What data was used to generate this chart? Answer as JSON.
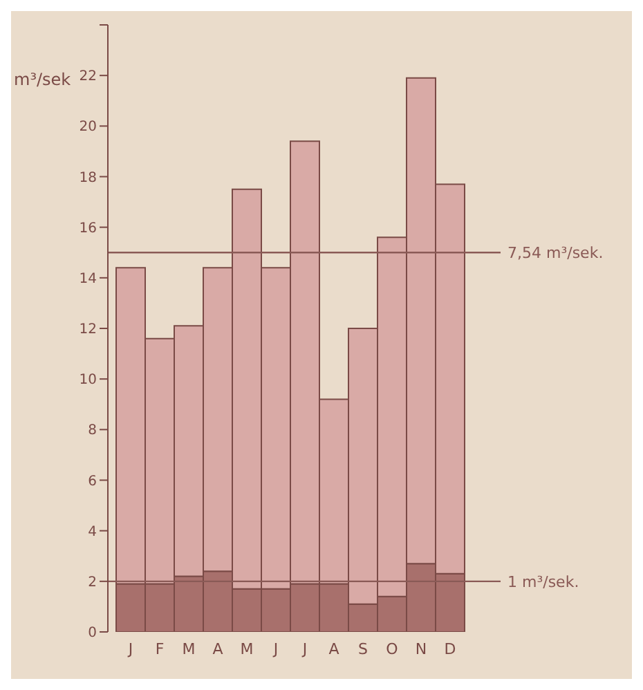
{
  "chart_data": {
    "type": "bar",
    "ylabel": "m³/sek",
    "categories": [
      "J",
      "F",
      "M",
      "A",
      "M",
      "J",
      "J",
      "A",
      "S",
      "O",
      "N",
      "D"
    ],
    "series": [
      {
        "color": "#a8706c",
        "values": [
          1.9,
          1.9,
          2.2,
          2.4,
          1.7,
          1.7,
          1.9,
          1.9,
          1.1,
          1.4,
          2.7,
          2.3
        ]
      },
      {
        "color": "#d9aaa6",
        "values": [
          12.5,
          9.7,
          9.9,
          12.0,
          15.8,
          12.7,
          17.5,
          7.3,
          10.9,
          14.2,
          19.2,
          15.4
        ]
      }
    ],
    "stacked": true,
    "ylim": [
      0,
      24
    ],
    "yticks": [
      0,
      2,
      4,
      6,
      8,
      10,
      12,
      14,
      16,
      18,
      20,
      22,
      {
        "value": 24,
        "label": null
      }
    ],
    "grid": false,
    "legend": false,
    "ref_lines": [
      {
        "axis": "y",
        "value": 15,
        "label": "7,54 m³/sek.",
        "color": "#8a5a56"
      },
      {
        "axis": "y",
        "value": 2,
        "label": "1 m³/sek.",
        "color": "#8a5a56"
      }
    ]
  }
}
